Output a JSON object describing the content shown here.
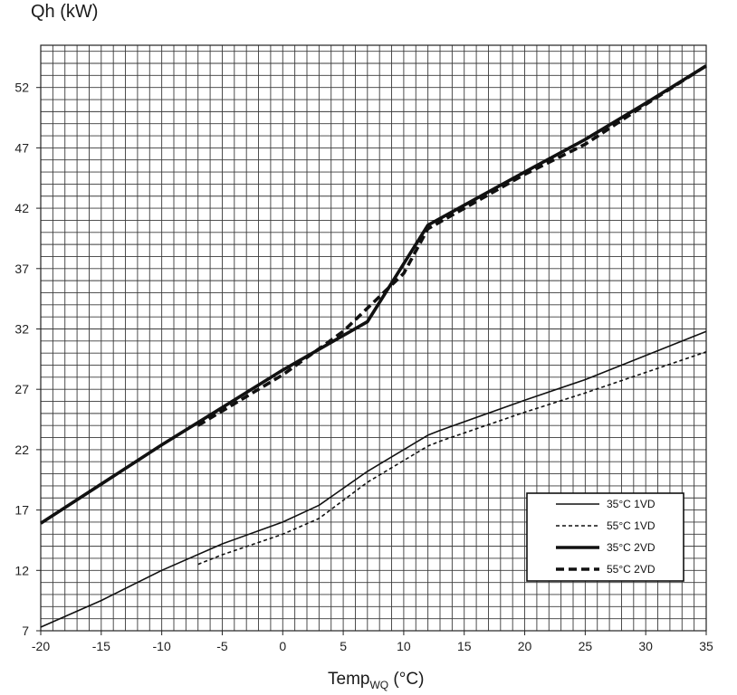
{
  "chart_data": {
    "type": "line",
    "ylabel": "Qh (kW)",
    "xlabel_main": "Temp",
    "xlabel_sub": "WQ",
    "xlabel_unit": " (°C)",
    "xlim": [
      -20,
      35
    ],
    "ylim": [
      7,
      55.5
    ],
    "x_ticks": [
      -20,
      -15,
      -10,
      -5,
      0,
      5,
      10,
      15,
      20,
      25,
      30,
      35
    ],
    "y_ticks": [
      7,
      12,
      17,
      22,
      27,
      32,
      37,
      42,
      47,
      52
    ],
    "grid": true,
    "legend_position": "bottom-right",
    "series": [
      {
        "name": "35°C 1VD",
        "style": "thin-solid",
        "points": [
          [
            -20,
            7.3
          ],
          [
            -15,
            9.5
          ],
          [
            -10,
            12.0
          ],
          [
            -5,
            14.2
          ],
          [
            0,
            16.0
          ],
          [
            3,
            17.4
          ],
          [
            7,
            20.2
          ],
          [
            12,
            23.2
          ],
          [
            13,
            23.6
          ],
          [
            20,
            26.1
          ],
          [
            25,
            27.8
          ],
          [
            35,
            31.8
          ]
        ]
      },
      {
        "name": "55°C 1VD",
        "style": "thin-dashed",
        "points": [
          [
            -7,
            12.5
          ],
          [
            -5,
            13.3
          ],
          [
            0,
            15.0
          ],
          [
            3,
            16.3
          ],
          [
            7,
            19.3
          ],
          [
            12,
            22.3
          ],
          [
            13,
            22.7
          ],
          [
            20,
            25.1
          ],
          [
            25,
            26.7
          ],
          [
            35,
            30.1
          ]
        ]
      },
      {
        "name": "35°C 2VD",
        "style": "thick-solid",
        "points": [
          [
            -20,
            15.9
          ],
          [
            -10,
            22.4
          ],
          [
            0,
            28.6
          ],
          [
            7,
            32.6
          ],
          [
            12,
            40.6
          ],
          [
            20,
            45.0
          ],
          [
            25,
            47.7
          ],
          [
            30,
            50.7
          ],
          [
            35,
            53.8
          ]
        ]
      },
      {
        "name": "55°C 2VD",
        "style": "thick-dashed",
        "points": [
          [
            -7,
            24.0
          ],
          [
            0,
            28.2
          ],
          [
            5,
            31.8
          ],
          [
            10,
            36.6
          ],
          [
            12,
            40.3
          ],
          [
            20,
            44.8
          ],
          [
            25,
            47.3
          ],
          [
            30,
            50.6
          ],
          [
            35,
            53.8
          ]
        ]
      }
    ]
  }
}
